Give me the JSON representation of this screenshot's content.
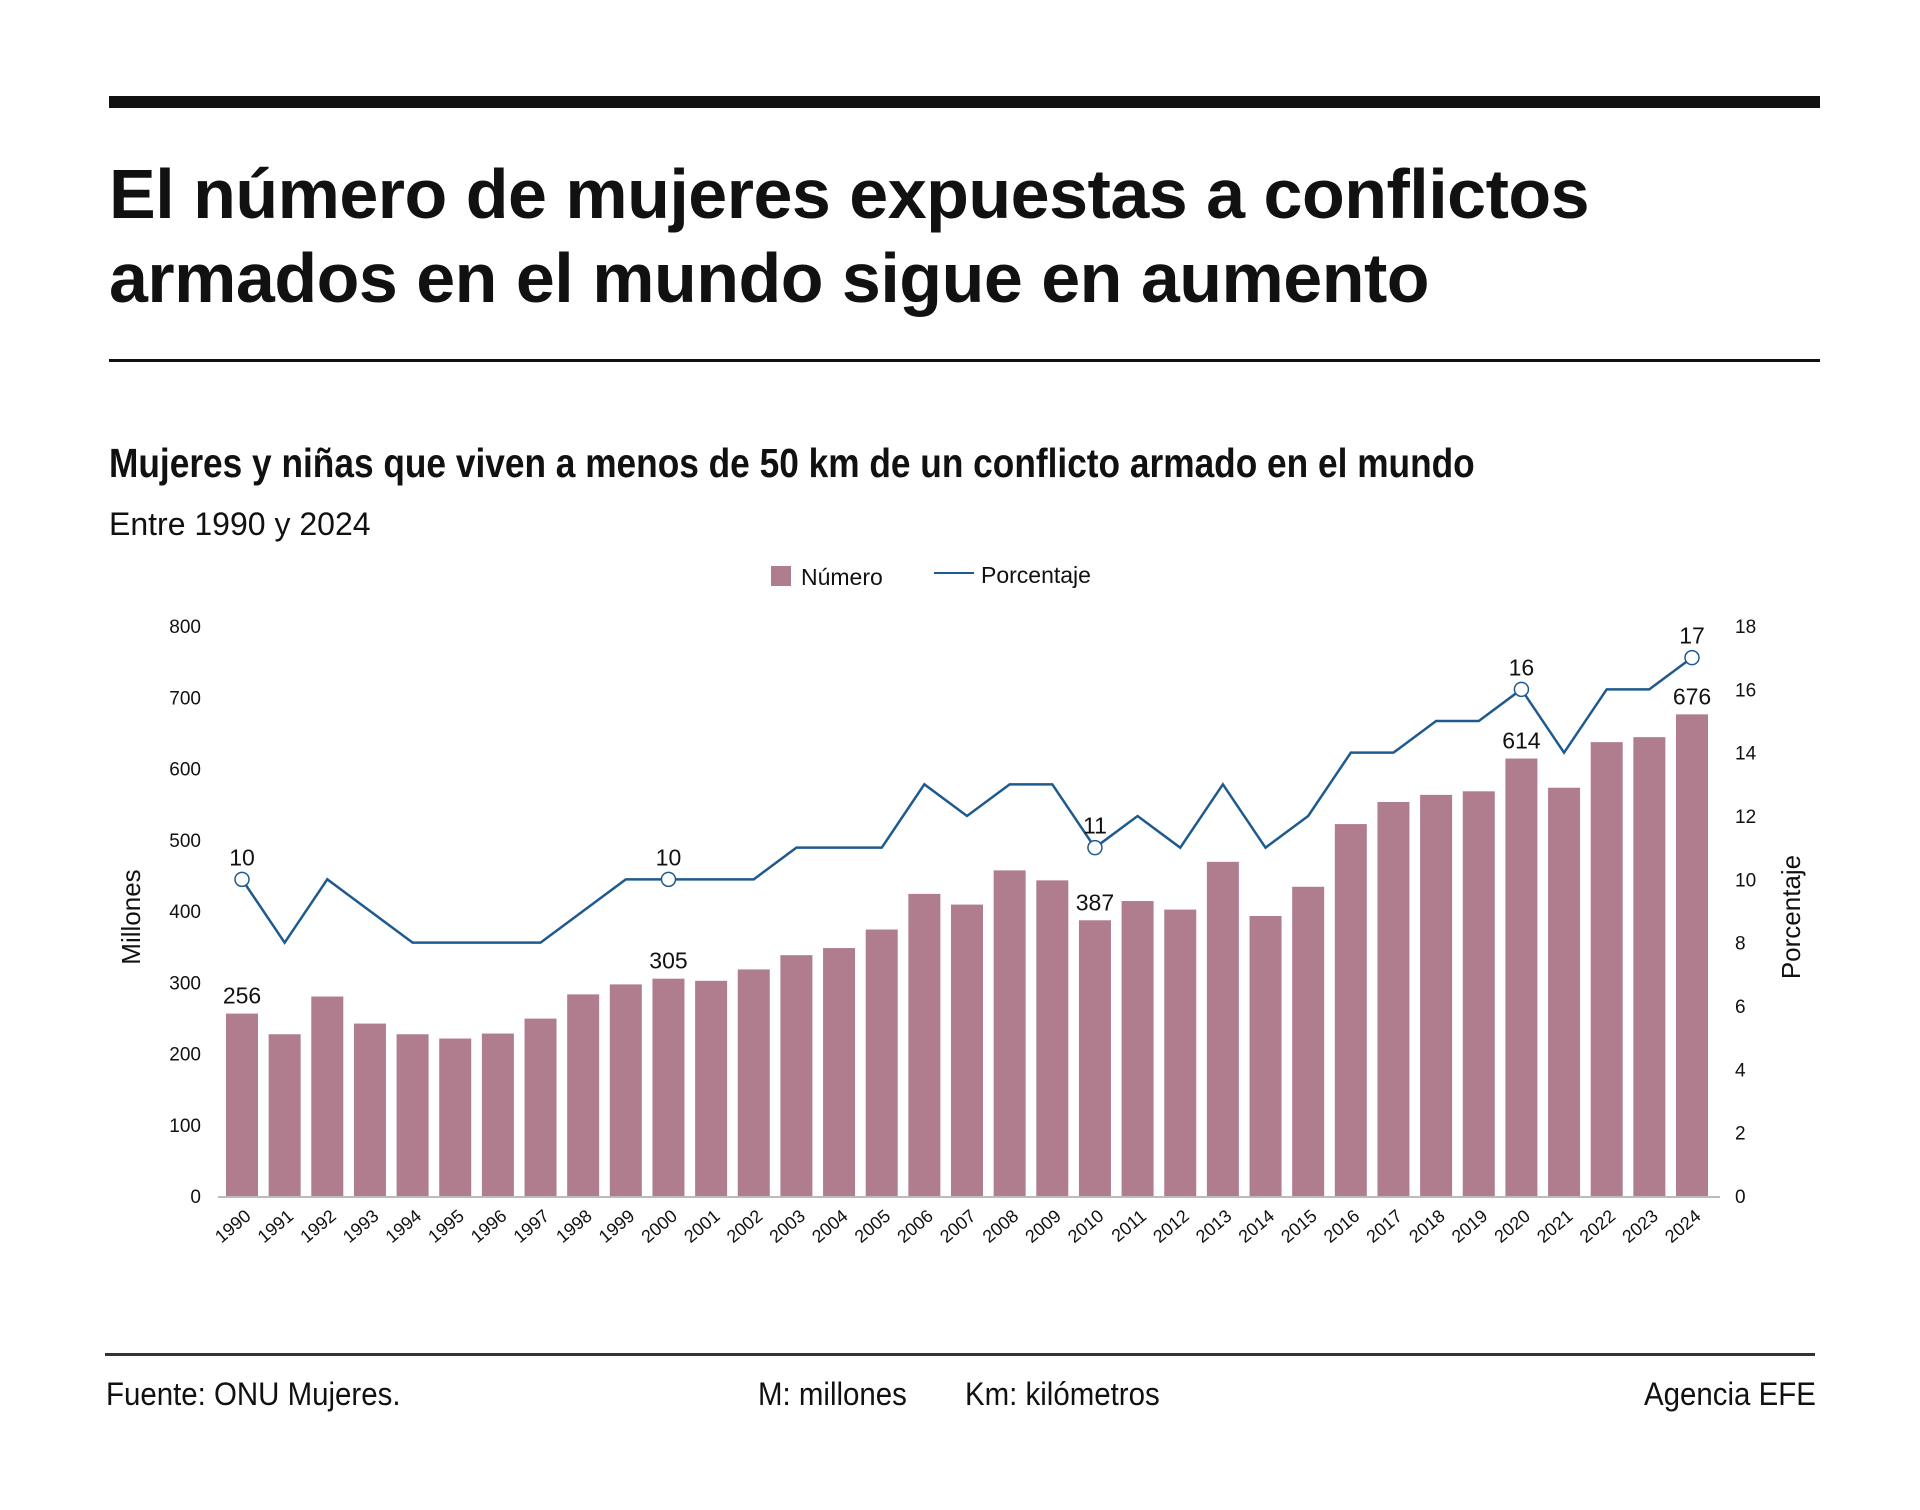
{
  "header": {
    "title_line1": "El número de mujeres expuestas a conflictos",
    "title_line2": "armados en el mundo sigue en aumento",
    "subtitle": "Mujeres y niñas que viven a menos de 50 km de un conflicto armado en el mundo",
    "dates": "Entre 1990 y 2024"
  },
  "footer": {
    "source": "Fuente: ONU Mujeres.",
    "note_m": "M: millones",
    "note_km": "Km: kilómetros",
    "agency": "Agencia EFE"
  },
  "colors": {
    "bar": "#b07d8e",
    "line": "#1f5a8e",
    "text": "#111111"
  },
  "chart_data": {
    "type": "bar+line",
    "categories": [
      "1990",
      "1991",
      "1992",
      "1993",
      "1994",
      "1995",
      "1996",
      "1997",
      "1998",
      "1999",
      "2000",
      "2001",
      "2002",
      "2003",
      "2004",
      "2005",
      "2006",
      "2007",
      "2008",
      "2009",
      "2010",
      "2011",
      "2012",
      "2013",
      "2014",
      "2015",
      "2016",
      "2017",
      "2018",
      "2019",
      "2020",
      "2021",
      "2022",
      "2023",
      "2024"
    ],
    "series": [
      {
        "name": "Número",
        "type": "bar",
        "axis": "left",
        "values": [
          256,
          227,
          280,
          242,
          227,
          221,
          228,
          249,
          283,
          297,
          305,
          302,
          318,
          338,
          348,
          374,
          424,
          409,
          457,
          443,
          387,
          414,
          402,
          469,
          393,
          434,
          522,
          553,
          563,
          568,
          614,
          573,
          637,
          644,
          676
        ]
      },
      {
        "name": "Porcentaje",
        "type": "line",
        "axis": "right",
        "values": [
          10,
          8,
          10,
          9,
          8,
          8,
          8,
          8,
          9,
          10,
          10,
          10,
          10,
          11,
          11,
          11,
          13,
          12,
          13,
          13,
          11,
          12,
          11,
          13,
          11,
          12,
          14,
          14,
          15,
          15,
          16,
          14,
          16,
          16,
          17
        ]
      }
    ],
    "bar_labels": {
      "1990": "256",
      "2000": "305",
      "2010": "387",
      "2020": "614",
      "2024": "676"
    },
    "line_labels": {
      "1990": "10",
      "2000": "10",
      "2010": "11",
      "2020": "16",
      "2024": "17"
    },
    "ylabel": "Millones",
    "y2label": "Porcentaje",
    "ylim": [
      0,
      800
    ],
    "y2lim": [
      0,
      18
    ],
    "yticks": [
      "0",
      "100",
      "200",
      "300",
      "400",
      "500",
      "600",
      "700",
      "800"
    ],
    "y2ticks": [
      "0",
      "2",
      "4",
      "6",
      "8",
      "10",
      "12",
      "14",
      "16",
      "18"
    ],
    "grid": false,
    "legend": "top-center"
  }
}
